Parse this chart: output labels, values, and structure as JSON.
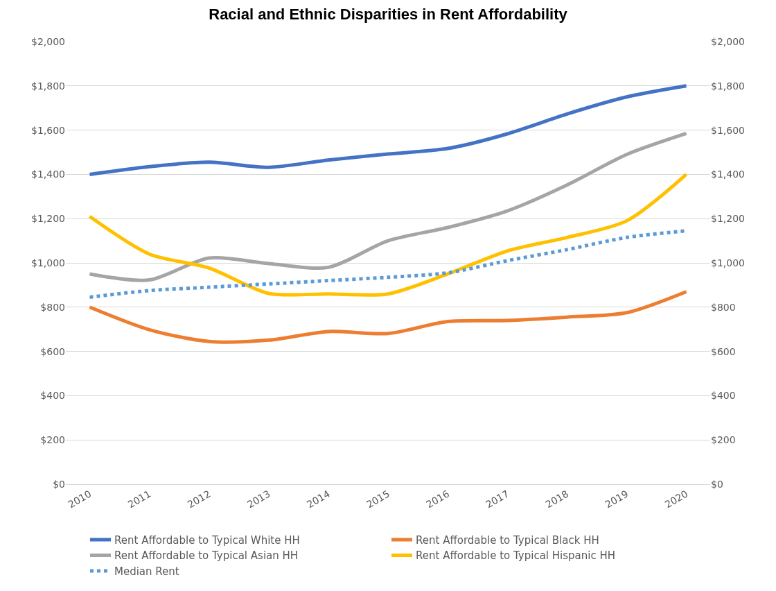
{
  "chart_data": {
    "type": "line",
    "title": "Racial and Ethnic Disparities in Rent Affordability",
    "categories": [
      "2010",
      "2011",
      "2012",
      "2013",
      "2014",
      "2015",
      "2016",
      "2017",
      "2018",
      "2019",
      "2020"
    ],
    "series": [
      {
        "name": "Rent Affordable to Typical White HH",
        "color": "#4472c4",
        "values": [
          1400,
          1435,
          1455,
          1432,
          1465,
          1492,
          1517,
          1583,
          1673,
          1750,
          1800
        ]
      },
      {
        "name": "Rent Affordable to Typical Black HH",
        "color": "#ed7d31",
        "values": [
          800,
          698,
          645,
          651,
          690,
          681,
          735,
          740,
          755,
          775,
          870
        ]
      },
      {
        "name": "Rent Affordable to Typical Asian HH",
        "color": "#a5a5a5",
        "values": [
          950,
          923,
          1022,
          997,
          980,
          1100,
          1160,
          1235,
          1352,
          1490,
          1585
        ]
      },
      {
        "name": "Rent Affordable to Typical Hispanic HH",
        "color": "#ffc000",
        "values": [
          1210,
          1040,
          977,
          862,
          860,
          860,
          950,
          1054,
          1115,
          1190,
          1400
        ]
      },
      {
        "name": "Median Rent",
        "color": "#5b9bd5",
        "line_style": "dotted",
        "values": [
          845,
          875,
          890,
          905,
          920,
          935,
          955,
          1010,
          1060,
          1115,
          1145
        ]
      }
    ],
    "ylim": [
      0,
      2000
    ],
    "yticks": [
      {
        "value": 0,
        "label": "$0"
      },
      {
        "value": 200,
        "label": "$200"
      },
      {
        "value": 400,
        "label": "$400"
      },
      {
        "value": 600,
        "label": "$600"
      },
      {
        "value": 800,
        "label": "$800"
      },
      {
        "value": 1000,
        "label": "$1,000"
      },
      {
        "value": 1200,
        "label": "$1,200"
      },
      {
        "value": 1400,
        "label": "$1,400"
      },
      {
        "value": 1600,
        "label": "$1,600"
      },
      {
        "value": 1800,
        "label": "$1,800"
      },
      {
        "value": 2000,
        "label": "$2,000"
      }
    ],
    "y2lim": [
      0,
      2000
    ],
    "y2ticks": [
      {
        "value": 0,
        "label": "$0"
      },
      {
        "value": 200,
        "label": "$200"
      },
      {
        "value": 400,
        "label": "$400"
      },
      {
        "value": 600,
        "label": "$600"
      },
      {
        "value": 800,
        "label": "$800"
      },
      {
        "value": 1000,
        "label": "$1,000"
      },
      {
        "value": 1200,
        "label": "$1,200"
      },
      {
        "value": 1400,
        "label": "$1,400"
      },
      {
        "value": 1600,
        "label": "$1,600"
      },
      {
        "value": 1800,
        "label": "$1,800"
      },
      {
        "value": 2000,
        "label": "$2,000"
      }
    ],
    "grid": "y",
    "legend": "bottom",
    "line_style": "solid",
    "marker": "none"
  }
}
